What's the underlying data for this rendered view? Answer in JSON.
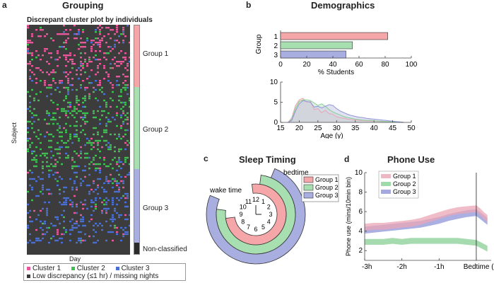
{
  "panels": {
    "a": {
      "letter": "a",
      "title": "Grouping",
      "subtitle": "Discrepant cluster plot by individuals",
      "ylabel": "Subject",
      "xlabel": "Day",
      "group_labels": [
        "Group 1",
        "Group 2",
        "Group 3",
        "Non-classified"
      ],
      "legend": {
        "items": [
          {
            "label": "Cluster 1",
            "color": "#e8579a"
          },
          {
            "label": "Cluster 2",
            "color": "#3fbf52"
          },
          {
            "label": "Cluster 3",
            "color": "#4a6fd4"
          }
        ],
        "low_label": "Low discrepancy (≤1 hr) / missing nights",
        "low_color": "#3a3a3a"
      }
    },
    "b": {
      "letter": "b",
      "title": "Demographics"
    },
    "c": {
      "letter": "c",
      "title": "Sleep Timing",
      "bedtime_label": "bedtime",
      "waketime_label": "wake time",
      "clock_numbers": [
        "12",
        "1",
        "2",
        "3",
        "4",
        "5",
        "6",
        "7",
        "8",
        "9",
        "10",
        "11"
      ]
    },
    "d": {
      "letter": "d",
      "title": "Phone Use"
    }
  },
  "colors": {
    "group1": "#f4a6a8",
    "group2": "#a8dfb0",
    "group3": "#a9aee0",
    "nonclassified": "#2b2b2b",
    "heatmap_bg": "#3c3c3c",
    "line1": "#e9a5b5",
    "line2": "#88cf95",
    "line3": "#8f94d8"
  },
  "chart_data": [
    {
      "id": "grouping",
      "type": "heatmap",
      "title": "Discrepant cluster plot by individuals",
      "xlabel": "Day",
      "ylabel": "Subject",
      "groups": [
        {
          "name": "Group 1",
          "fraction": 0.27,
          "dominant_cluster": "Cluster 1"
        },
        {
          "name": "Group 2",
          "fraction": 0.36,
          "dominant_cluster": "Cluster 2"
        },
        {
          "name": "Group 3",
          "fraction": 0.32,
          "dominant_cluster": "Cluster 3"
        },
        {
          "name": "Non-classified",
          "fraction": 0.05,
          "dominant_cluster": "none"
        }
      ],
      "legend": [
        "Cluster 1",
        "Cluster 2",
        "Cluster 3",
        "Low discrepancy (≤1 hr) / missing nights"
      ]
    },
    {
      "id": "group_share",
      "type": "bar",
      "orientation": "horizontal",
      "ylabel": "Group",
      "xlabel": "% Students",
      "categories": [
        "1",
        "2",
        "3"
      ],
      "values": [
        82,
        55,
        50
      ],
      "xlim": [
        0,
        100
      ],
      "xticks": [
        0,
        20,
        40,
        60,
        80,
        100
      ]
    },
    {
      "id": "age_distribution",
      "type": "area",
      "xlabel": "Age (y)",
      "xlim": [
        15,
        50
      ],
      "ylim": [
        0,
        10
      ],
      "xticks": [
        15,
        20,
        25,
        30,
        35,
        40,
        45,
        50
      ],
      "yticks": [
        0,
        5,
        10
      ],
      "series": [
        {
          "name": "Group 1",
          "x": [
            17,
            18,
            19,
            20,
            21,
            22,
            23,
            24,
            25,
            26,
            27,
            28,
            29,
            30,
            31,
            32,
            33,
            34,
            35,
            36,
            37,
            38,
            39,
            40,
            41,
            42,
            43,
            44,
            45,
            46,
            47,
            48
          ],
          "values": [
            0,
            1.2,
            4.2,
            5.6,
            6.0,
            5.0,
            5.2,
            3.2,
            3.4,
            2.4,
            3.0,
            2.2,
            2.0,
            1.4,
            1.2,
            1.0,
            0.8,
            0.7,
            0.6,
            0.5,
            0.5,
            0.4,
            0.4,
            0.3,
            0.3,
            0.2,
            0.2,
            0.2,
            0.1,
            0.1,
            0.1,
            0
          ]
        },
        {
          "name": "Group 2",
          "x": [
            17,
            18,
            19,
            20,
            21,
            22,
            23,
            24,
            25,
            26,
            27,
            28,
            29,
            30,
            31,
            32,
            33,
            34,
            35,
            36,
            37,
            38,
            39,
            40,
            41,
            42,
            43,
            44,
            45,
            46,
            47,
            48
          ],
          "values": [
            0,
            0.8,
            3.5,
            5.2,
            5.6,
            5.6,
            5.4,
            4.8,
            4.2,
            4.6,
            4.0,
            3.2,
            2.6,
            2.2,
            1.8,
            1.4,
            1.2,
            1.0,
            0.8,
            0.7,
            0.6,
            0.5,
            0.5,
            0.4,
            0.3,
            0.3,
            0.2,
            0.2,
            0.1,
            0.1,
            0.1,
            0
          ]
        },
        {
          "name": "Group 3",
          "x": [
            17,
            18,
            19,
            20,
            21,
            22,
            23,
            24,
            25,
            26,
            27,
            28,
            29,
            30,
            31,
            32,
            33,
            34,
            35,
            36,
            37,
            38,
            39,
            40,
            41,
            42,
            43,
            44,
            45,
            46,
            47,
            48
          ],
          "values": [
            0,
            0.5,
            2.8,
            4.6,
            5.4,
            5.2,
            5.0,
            3.8,
            4.0,
            3.6,
            4.0,
            4.4,
            4.2,
            3.4,
            2.8,
            2.4,
            2.0,
            1.7,
            1.5,
            1.3,
            1.2,
            1.0,
            0.9,
            0.8,
            0.7,
            0.6,
            0.5,
            0.4,
            0.3,
            0.2,
            0.1,
            0
          ]
        }
      ]
    },
    {
      "id": "sleep_timing",
      "type": "other",
      "subtype": "radial clock arcs (bedtime to wake time)",
      "legend": [
        "Group 1",
        "Group 2",
        "Group 3"
      ],
      "series": [
        {
          "name": "Group 1",
          "bedtime": "23:45",
          "waketime": "08:45"
        },
        {
          "name": "Group 2",
          "bedtime": "00:15",
          "waketime": "09:15"
        },
        {
          "name": "Group 3",
          "bedtime": "00:45",
          "waketime": "09:45"
        }
      ]
    },
    {
      "id": "phone_use",
      "type": "line",
      "title": "Phone Use",
      "ylabel": "Phone use (mins/10min bin)",
      "ylim": [
        1,
        10
      ],
      "yticks": [
        2,
        4,
        6,
        8,
        10
      ],
      "xlim": [
        -3,
        0.4
      ],
      "xticks": [
        -3,
        -2,
        -1,
        0
      ],
      "xtick_labels": [
        "-3h",
        "-2h",
        "-1h",
        "Bedtime (Oura)"
      ],
      "series": [
        {
          "name": "Group 1",
          "x": [
            -3.0,
            -2.75,
            -2.5,
            -2.25,
            -2.0,
            -1.75,
            -1.5,
            -1.25,
            -1.0,
            -0.75,
            -0.5,
            -0.25,
            0.0,
            0.1,
            0.2,
            0.3
          ],
          "values": [
            4.4,
            4.5,
            4.5,
            4.6,
            4.7,
            4.8,
            5.0,
            5.3,
            5.6,
            5.9,
            6.1,
            6.2,
            6.3,
            6.0,
            5.6,
            5.3
          ]
        },
        {
          "name": "Group 2",
          "x": [
            -3.0,
            -2.75,
            -2.5,
            -2.25,
            -2.0,
            -1.75,
            -1.5,
            -1.25,
            -1.0,
            -0.75,
            -0.5,
            -0.25,
            0.0,
            0.1,
            0.2,
            0.3
          ],
          "values": [
            2.9,
            2.9,
            2.9,
            3.0,
            2.9,
            3.0,
            3.0,
            3.0,
            3.0,
            3.0,
            3.0,
            2.9,
            2.8,
            2.6,
            2.4,
            2.2
          ]
        },
        {
          "name": "Group 3",
          "x": [
            -3.0,
            -2.75,
            -2.5,
            -2.25,
            -2.0,
            -1.75,
            -1.5,
            -1.25,
            -1.0,
            -0.75,
            -0.5,
            -0.25,
            0.0,
            0.1,
            0.2,
            0.3
          ],
          "values": [
            4.1,
            4.2,
            4.3,
            4.4,
            4.5,
            4.6,
            4.7,
            4.9,
            5.1,
            5.4,
            5.6,
            5.8,
            5.9,
            5.6,
            5.3,
            5.0
          ]
        }
      ]
    }
  ]
}
